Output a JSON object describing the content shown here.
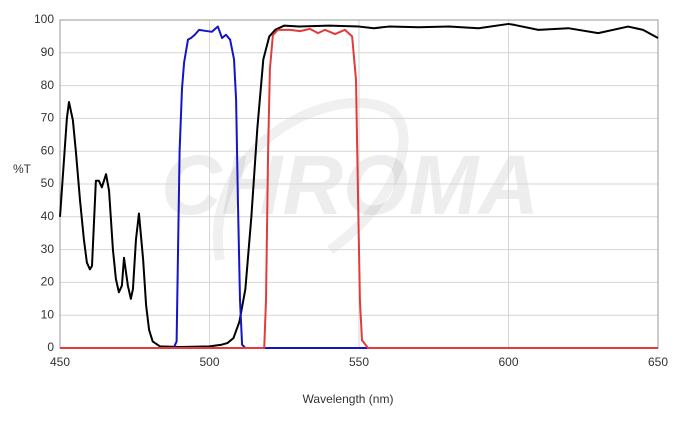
{
  "chart_data": {
    "type": "line",
    "x_label": "Wavelength (nm)",
    "y_label": "%T",
    "watermark": "CHROMA",
    "xlim": [
      450,
      650
    ],
    "xticks": [
      450,
      500,
      550,
      600,
      650
    ],
    "ylim": [
      0,
      100
    ],
    "yticks": [
      0,
      10,
      20,
      30,
      40,
      50,
      60,
      70,
      80,
      90,
      100
    ],
    "grid": true,
    "series": [
      {
        "color": "#000000",
        "x": [
          450,
          452.3,
          453,
          454.3,
          455.3,
          456.7,
          458,
          459,
          460,
          460.7,
          462,
          463,
          464,
          465.4,
          466.4,
          467.7,
          468.7,
          469.7,
          470.7,
          471.4,
          472.7,
          473.7,
          474.4,
          475.4,
          476.4,
          477.8,
          478.8,
          479.8,
          481,
          483.4,
          490,
          500,
          504,
          506,
          508,
          510,
          512,
          514,
          516,
          518,
          520,
          522,
          525,
          530,
          540,
          550,
          555,
          560,
          570,
          580,
          590,
          600,
          602,
          610,
          620,
          630,
          640,
          645,
          650
        ],
        "values": [
          40,
          70,
          75,
          69.5,
          60,
          45,
          33,
          26,
          24,
          25,
          51,
          51,
          49,
          53,
          48,
          30,
          21,
          17,
          19,
          27.5,
          19,
          15,
          18,
          33,
          41,
          27,
          13,
          5.5,
          2,
          0.5,
          0.3,
          0.5,
          1,
          1.5,
          3,
          8,
          18,
          40,
          67,
          88,
          95,
          97,
          98.3,
          98,
          98.3,
          98,
          97.5,
          98,
          97.8,
          98,
          97.5,
          98.8,
          98.5,
          97,
          97.5,
          96,
          98,
          97,
          94.5
        ]
      },
      {
        "color": "#1414c8",
        "x": [
          450,
          488,
          489,
          490,
          490.8,
          491.5,
          492.8,
          493.8,
          495.1,
          496.5,
          498.5,
          500.8,
          502.8,
          504.2,
          505.5,
          506.9,
          508.2,
          508.9,
          509.5,
          510.2,
          510.9,
          512,
          650
        ],
        "values": [
          0,
          0,
          2,
          60,
          79,
          87,
          94,
          94.5,
          95.5,
          97,
          96.7,
          96.4,
          98,
          94.5,
          95.5,
          94,
          88,
          75.6,
          45,
          14.6,
          1,
          0,
          0
        ]
      },
      {
        "color": "#e03c3c",
        "x": [
          450,
          518.3,
          518.9,
          519.6,
          520.2,
          521.2,
          522.9,
          526.9,
          530.3,
          533.6,
          536.3,
          538.6,
          542,
          545.3,
          547.7,
          549,
          549.7,
          550.3,
          551,
          553,
          650
        ],
        "values": [
          0,
          0,
          14.6,
          60,
          85,
          95.4,
          97,
          97,
          96.6,
          97.3,
          96,
          97,
          95.7,
          97,
          95,
          81.7,
          45,
          14.6,
          2.4,
          0,
          0
        ]
      }
    ]
  }
}
